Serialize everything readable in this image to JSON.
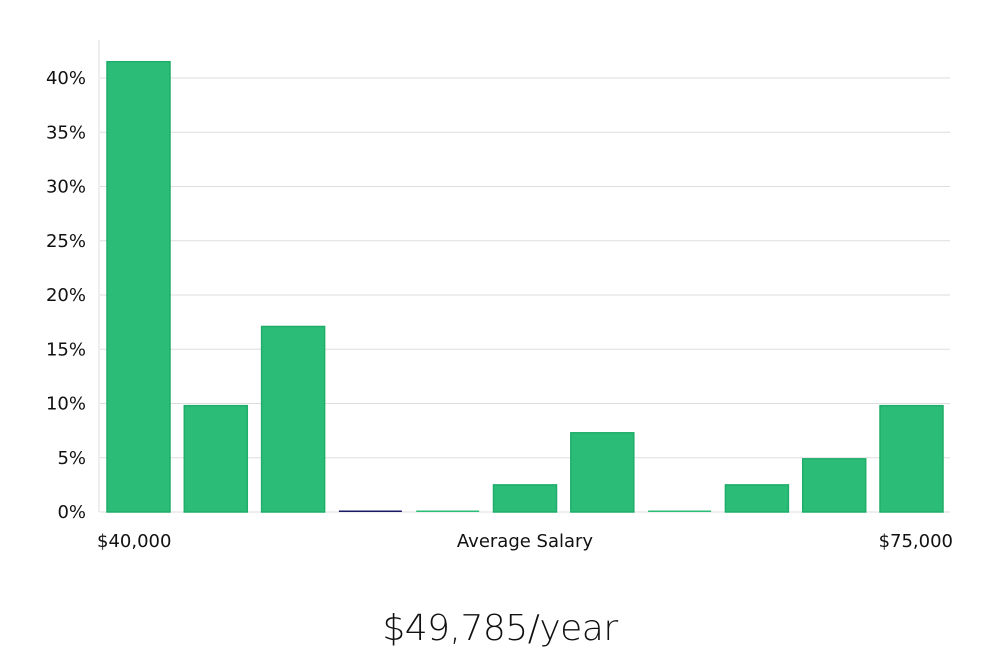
{
  "chart_data": {
    "type": "bar",
    "categories": [
      "1",
      "2",
      "3",
      "4",
      "5",
      "6",
      "7",
      "8",
      "9",
      "10",
      "11"
    ],
    "values": [
      41.5,
      9.8,
      17.1,
      0,
      0,
      2.5,
      7.3,
      0,
      2.5,
      4.9,
      9.8
    ],
    "ylim": [
      0,
      44
    ],
    "yticks": [
      0,
      5,
      10,
      15,
      20,
      25,
      30,
      35,
      40
    ],
    "ytick_suffix": "%",
    "x_labels": {
      "left": "$40,000",
      "center": "Average Salary",
      "right": "$75,000"
    },
    "grid": true,
    "colors": {
      "bar": "#2bbd78",
      "bar_edge": "#1fad69",
      "highlight_bar": "#1a1a66",
      "gridline": "#dddddd"
    },
    "highlight_index": 3
  },
  "summary": {
    "salary_text": "$49,785/year"
  }
}
